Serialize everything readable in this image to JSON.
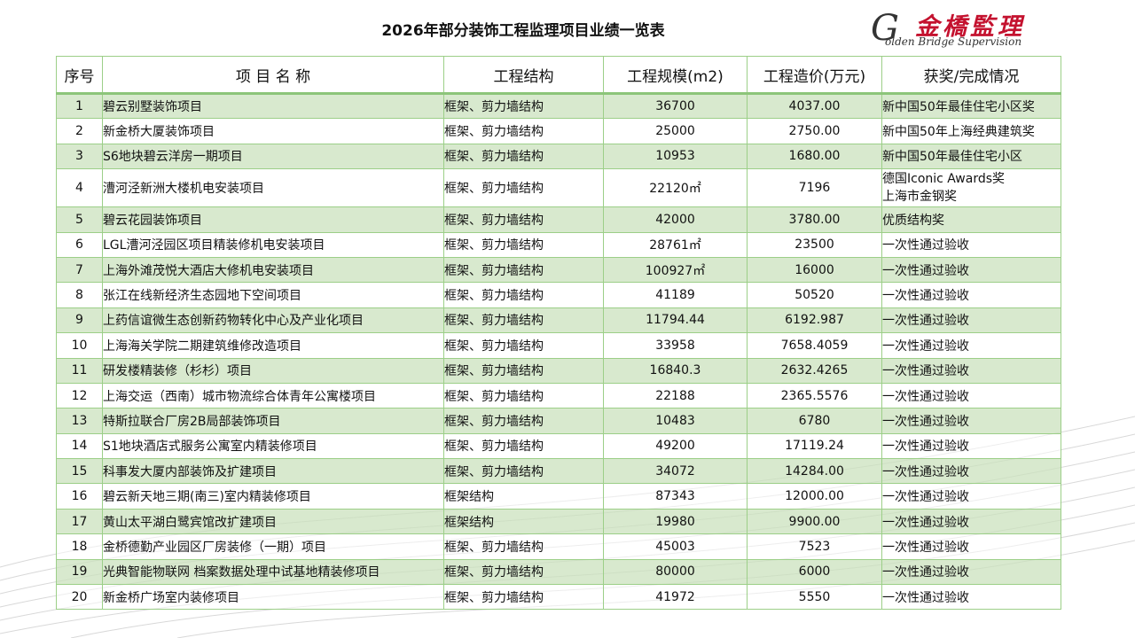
{
  "page_title": "2026年部分装饰工程监理项目业绩一览表",
  "logo": {
    "chinese": "金橋監理",
    "initial": "G",
    "english": "olden Bridge Supervision"
  },
  "colors": {
    "row_tint": "#cbe2bd",
    "border": "#9ccf88",
    "logo_red": "#c4122f"
  },
  "table": {
    "headers": [
      "序号",
      "项 目 名 称",
      "工程结构",
      "工程规模(m2)",
      "工程造价(万元)",
      "获奖/完成情况"
    ],
    "rows": [
      {
        "idx": "1",
        "name": "碧云别墅装饰项目",
        "structure": "框架、剪力墙结构",
        "scale": "36700",
        "cost": "4037.00",
        "award": [
          "新中国50年最佳住宅小区奖"
        ]
      },
      {
        "idx": "2",
        "name": "新金桥大厦装饰项目",
        "structure": "框架、剪力墙结构",
        "scale": "25000",
        "cost": "2750.00",
        "award": [
          "新中国50年上海经典建筑奖"
        ]
      },
      {
        "idx": "3",
        "name": "S6地块碧云洋房一期项目",
        "structure": "框架、剪力墙结构",
        "scale": "10953",
        "cost": "1680.00",
        "award": [
          "新中国50年最佳住宅小区"
        ]
      },
      {
        "idx": "4",
        "name": "漕河泾新洲大楼机电安装项目",
        "structure": "框架、剪力墙结构",
        "scale": "22120㎡",
        "cost": "7196",
        "award": [
          "德国Iconic Awards奖",
          "上海市金钢奖"
        ]
      },
      {
        "idx": "5",
        "name": "碧云花园装饰项目",
        "structure": "框架、剪力墙结构",
        "scale": "42000",
        "cost": "3780.00",
        "award": [
          "优质结构奖"
        ]
      },
      {
        "idx": "6",
        "name": "LGL漕河泾园区项目精装修机电安装项目",
        "structure": "框架、剪力墙结构",
        "scale": "28761㎡",
        "cost": "23500",
        "award": [
          "一次性通过验收"
        ]
      },
      {
        "idx": "7",
        "name": "上海外滩茂悦大酒店大修机电安装项目",
        "structure": "框架、剪力墙结构",
        "scale": "100927㎡",
        "cost": "16000",
        "award": [
          "一次性通过验收"
        ]
      },
      {
        "idx": "8",
        "name": "张江在线新经济生态园地下空间项目",
        "structure": "框架、剪力墙结构",
        "scale": "41189",
        "cost": "50520",
        "award": [
          "一次性通过验收"
        ]
      },
      {
        "idx": "9",
        "name": "上药信谊微生态创新药物转化中心及产业化项目",
        "structure": "框架、剪力墙结构",
        "scale": "11794.44",
        "cost": "6192.987",
        "award": [
          "一次性通过验收"
        ]
      },
      {
        "idx": "10",
        "name": "上海海关学院二期建筑维修改造项目",
        "structure": "框架、剪力墙结构",
        "scale": "33958",
        "cost": "7658.4059",
        "award": [
          "一次性通过验收"
        ]
      },
      {
        "idx": "11",
        "name": "研发楼精装修（杉杉）项目",
        "structure": "框架、剪力墙结构",
        "scale": "16840.3",
        "cost": "2632.4265",
        "award": [
          "一次性通过验收"
        ]
      },
      {
        "idx": "12",
        "name": "上海交运（西南）城市物流综合体青年公寓楼项目",
        "structure": "框架、剪力墙结构",
        "scale": "22188",
        "cost": "2365.5576",
        "award": [
          "一次性通过验收"
        ]
      },
      {
        "idx": "13",
        "name": "特斯拉联合厂房2B局部装饰项目",
        "structure": "框架、剪力墙结构",
        "scale": "10483",
        "cost": "6780",
        "award": [
          "一次性通过验收"
        ]
      },
      {
        "idx": "14",
        "name": "S1地块酒店式服务公寓室内精装修项目",
        "structure": "框架、剪力墙结构",
        "scale": "49200",
        "cost": "17119.24",
        "award": [
          "一次性通过验收"
        ]
      },
      {
        "idx": "15",
        "name": "科事发大厦内部装饰及扩建项目",
        "structure": "框架、剪力墙结构",
        "scale": "34072",
        "cost": "14284.00",
        "award": [
          "一次性通过验收"
        ]
      },
      {
        "idx": "16",
        "name": "碧云新天地三期(南三)室内精装修项目",
        "structure": "框架结构",
        "scale": "87343",
        "cost": "12000.00",
        "award": [
          "一次性通过验收"
        ]
      },
      {
        "idx": "17",
        "name": "黄山太平湖白鹭宾馆改扩建项目",
        "structure": "框架结构",
        "scale": "19980",
        "cost": "9900.00",
        "award": [
          "一次性通过验收"
        ]
      },
      {
        "idx": "18",
        "name": "金桥德勤产业园区厂房装修（一期）项目",
        "structure": "框架、剪力墙结构",
        "scale": "45003",
        "cost": "7523",
        "award": [
          "一次性通过验收"
        ]
      },
      {
        "idx": "19",
        "name": "光典智能物联网 档案数据处理中试基地精装修项目",
        "structure": "框架、剪力墙结构",
        "scale": "80000",
        "cost": "6000",
        "award": [
          "一次性通过验收"
        ]
      },
      {
        "idx": "20",
        "name": "新金桥广场室内装修项目",
        "structure": "框架、剪力墙结构",
        "scale": "41972",
        "cost": "5550",
        "award": [
          "一次性通过验收"
        ]
      }
    ]
  }
}
